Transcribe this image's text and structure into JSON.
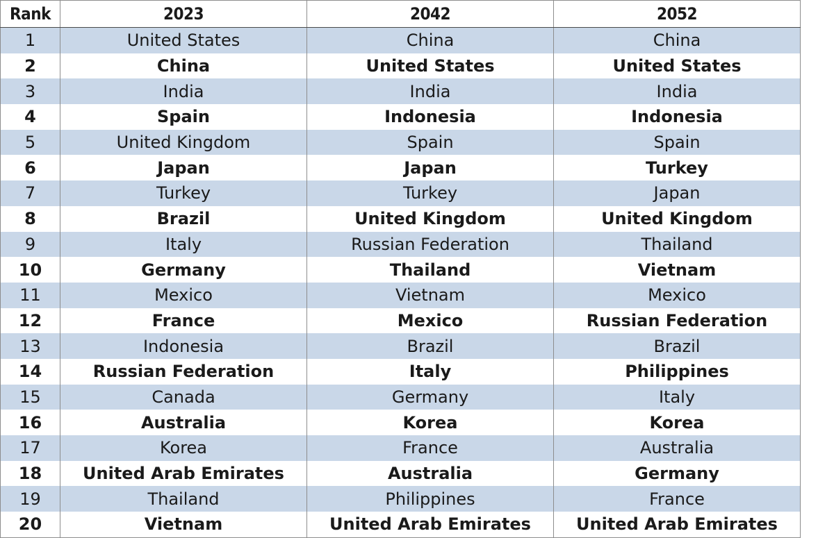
{
  "table": {
    "headers": [
      "Rank",
      "2023",
      "2042",
      "2052"
    ],
    "rows": [
      [
        "1",
        "United States",
        "China",
        "China"
      ],
      [
        "2",
        "China",
        "United States",
        "United States"
      ],
      [
        "3",
        "India",
        "India",
        "India"
      ],
      [
        "4",
        "Spain",
        "Indonesia",
        "Indonesia"
      ],
      [
        "5",
        "United Kingdom",
        "Spain",
        "Spain"
      ],
      [
        "6",
        "Japan",
        "Japan",
        "Turkey"
      ],
      [
        "7",
        "Turkey",
        "Turkey",
        "Japan"
      ],
      [
        "8",
        "Brazil",
        "United Kingdom",
        "United Kingdom"
      ],
      [
        "9",
        "Italy",
        "Russian Federation",
        "Thailand"
      ],
      [
        "10",
        "Germany",
        "Thailand",
        "Vietnam"
      ],
      [
        "11",
        "Mexico",
        "Vietnam",
        "Mexico"
      ],
      [
        "12",
        "France",
        "Mexico",
        "Russian Federation"
      ],
      [
        "13",
        "Indonesia",
        "Brazil",
        "Brazil"
      ],
      [
        "14",
        "Russian Federation",
        "Italy",
        "Philippines"
      ],
      [
        "15",
        "Canada",
        "Germany",
        "Italy"
      ],
      [
        "16",
        "Australia",
        "Korea",
        "Korea"
      ],
      [
        "17",
        "Korea",
        "France",
        "Australia"
      ],
      [
        "18",
        "United Arab Emirates",
        "Australia",
        "Germany"
      ],
      [
        "19",
        "Thailand",
        "Philippines",
        "France"
      ],
      [
        "20",
        "Vietnam",
        "United Arab Emirates",
        "United Arab Emirates"
      ]
    ]
  },
  "colors": {
    "band_row": "#c9d7e8",
    "plain_row": "#ffffff",
    "border": "#8d8d8d",
    "text": "#1a1a1a"
  }
}
